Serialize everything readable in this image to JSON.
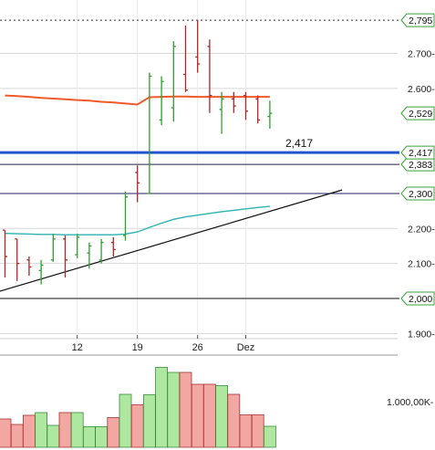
{
  "chart_data": {
    "type": "candlestick",
    "title": "",
    "price_axis": {
      "ticks": [
        {
          "value": 1900,
          "label": "1.900-"
        },
        {
          "value": 2000,
          "label": "2,000",
          "boxed": true
        },
        {
          "value": 2100,
          "label": "2.100-"
        },
        {
          "value": 2200,
          "label": "2.200-"
        },
        {
          "value": 2300,
          "label": "2,300",
          "boxed": true
        },
        {
          "value": 2383,
          "label": "2,383",
          "boxed": true
        },
        {
          "value": 2417,
          "label": "2,417",
          "boxed": true
        },
        {
          "value": 2529,
          "label": "2,529",
          "boxed": true
        },
        {
          "value": 2600,
          "label": "2.600-"
        },
        {
          "value": 2700,
          "label": "2.700-"
        },
        {
          "value": 2795,
          "label": "2,795",
          "boxed": true
        }
      ],
      "range": [
        1860,
        2850
      ]
    },
    "x_axis": {
      "ticks": [
        {
          "index": 6,
          "label": "12"
        },
        {
          "index": 11,
          "label": "19"
        },
        {
          "index": 16,
          "label": "26"
        },
        {
          "index": 20,
          "label": "Dez"
        }
      ]
    },
    "candles": [
      {
        "o": 2195,
        "h": 2195,
        "l": 2060,
        "c": 2120,
        "dir": "down"
      },
      {
        "o": 2170,
        "h": 2170,
        "l": 2050,
        "c": 2100,
        "dir": "down"
      },
      {
        "o": 2110,
        "h": 2120,
        "l": 2065,
        "c": 2090,
        "dir": "down"
      },
      {
        "o": 2080,
        "h": 2110,
        "l": 2040,
        "c": 2095,
        "dir": "up"
      },
      {
        "o": 2110,
        "h": 2185,
        "l": 2105,
        "c": 2170,
        "dir": "up"
      },
      {
        "o": 2170,
        "h": 2180,
        "l": 2060,
        "c": 2110,
        "dir": "down"
      },
      {
        "o": 2125,
        "h": 2185,
        "l": 2115,
        "c": 2175,
        "dir": "up"
      },
      {
        "o": 2130,
        "h": 2160,
        "l": 2085,
        "c": 2150,
        "dir": "up"
      },
      {
        "o": 2110,
        "h": 2170,
        "l": 2100,
        "c": 2160,
        "dir": "up"
      },
      {
        "o": 2160,
        "h": 2175,
        "l": 2120,
        "c": 2140,
        "dir": "down"
      },
      {
        "o": 2180,
        "h": 2305,
        "l": 2165,
        "c": 2290,
        "dir": "up"
      },
      {
        "o": 2360,
        "h": 2380,
        "l": 2275,
        "c": 2330,
        "dir": "down"
      },
      {
        "o": 2300,
        "h": 2645,
        "l": 2300,
        "c": 2635,
        "dir": "up"
      },
      {
        "o": 2510,
        "h": 2635,
        "l": 2495,
        "c": 2620,
        "dir": "up"
      },
      {
        "o": 2545,
        "h": 2735,
        "l": 2505,
        "c": 2720,
        "dir": "up"
      },
      {
        "o": 2640,
        "h": 2780,
        "l": 2590,
        "c": 2595,
        "dir": "down"
      },
      {
        "o": 2690,
        "h": 2795,
        "l": 2645,
        "c": 2670,
        "dir": "down"
      },
      {
        "o": 2720,
        "h": 2740,
        "l": 2530,
        "c": 2580,
        "dir": "down"
      },
      {
        "o": 2540,
        "h": 2590,
        "l": 2470,
        "c": 2570,
        "dir": "up"
      },
      {
        "o": 2570,
        "h": 2590,
        "l": 2530,
        "c": 2550,
        "dir": "down"
      },
      {
        "o": 2580,
        "h": 2590,
        "l": 2510,
        "c": 2535,
        "dir": "down"
      },
      {
        "o": 2570,
        "h": 2580,
        "l": 2500,
        "c": 2510,
        "dir": "down"
      },
      {
        "o": 2520,
        "h": 2565,
        "l": 2485,
        "c": 2529,
        "dir": "up"
      }
    ],
    "moving_averages": [
      {
        "name": "",
        "color": "#f05a28",
        "values": [
          2580,
          2578,
          2576,
          2573,
          2571,
          2569,
          2567,
          2565,
          2562,
          2560,
          2557,
          2554,
          2575,
          2576,
          2577,
          2577,
          2576,
          2576,
          2576,
          2576,
          2576,
          2576,
          2576
        ]
      },
      {
        "name": "",
        "color": "#2bb3b0",
        "values": [
          2186,
          2185,
          2184,
          2183,
          2183,
          2182,
          2182,
          2182,
          2182,
          2182,
          2184,
          2190,
          2203,
          2215,
          2226,
          2233,
          2238,
          2243,
          2248,
          2252,
          2256,
          2260,
          2263
        ]
      }
    ],
    "horizontal_lines": [
      {
        "value": 2795,
        "style": "dotted",
        "color": "#333333"
      },
      {
        "value": 2417,
        "style": "solid",
        "color": "#2255cc",
        "width": 3,
        "label": "2,417"
      },
      {
        "value": 2383,
        "style": "solid",
        "color": "#222244"
      },
      {
        "value": 2300,
        "style": "solid",
        "color": "#222266"
      },
      {
        "value": 2000,
        "style": "solid",
        "color": "#111111"
      }
    ],
    "trendline": {
      "from": {
        "index": -0.5,
        "value": 2020
      },
      "to": {
        "index": 28,
        "value": 2310
      },
      "color": "#111111"
    },
    "volume": {
      "axis_label": "1.000,00K-",
      "values": [
        620,
        500,
        700,
        760,
        480,
        760,
        760,
        450,
        450,
        650,
        1160,
        930,
        1150,
        1750,
        1640,
        1640,
        1380,
        1380,
        1350,
        1160,
        710,
        710,
        460
      ],
      "up_color": "#aee8a0",
      "down_color": "#f2a7a3",
      "edge_up": "#3a8a3a",
      "edge_down": "#a83232"
    },
    "colors": {
      "up": "#2e9e2e",
      "down": "#b02525",
      "grid": "#d8d8d8",
      "box_stroke": "#3aa03a"
    }
  }
}
